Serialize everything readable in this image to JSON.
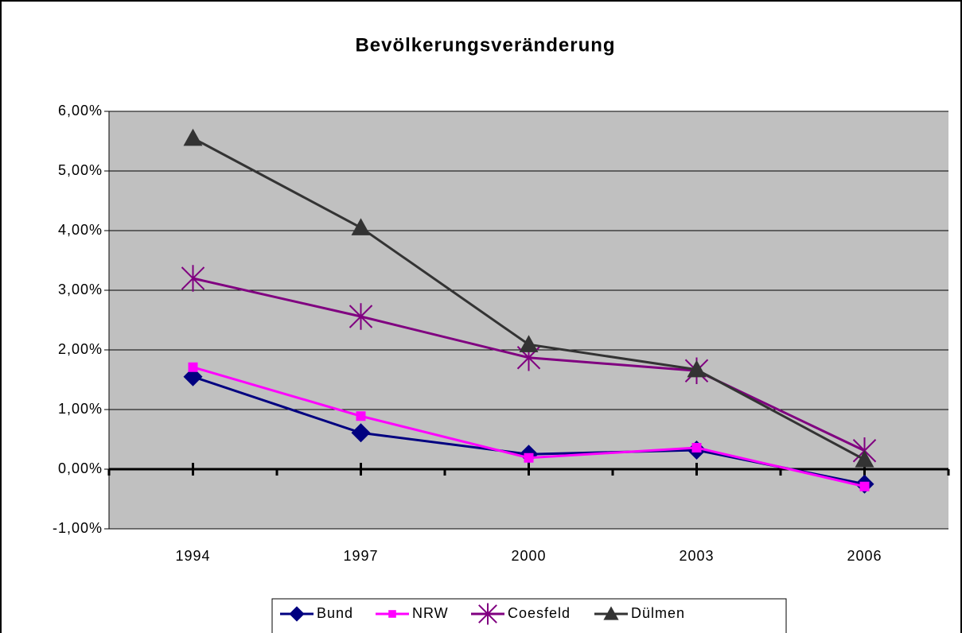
{
  "chart_data": {
    "type": "line",
    "title": "Bevölkerungsveränderung",
    "categories": [
      "1994",
      "1997",
      "2000",
      "2003",
      "2006"
    ],
    "series": [
      {
        "name": "Bund",
        "color": "#000080",
        "marker": "diamond",
        "values": [
          1.55,
          0.61,
          0.25,
          0.32,
          -0.25
        ]
      },
      {
        "name": "NRW",
        "color": "#FF00FF",
        "marker": "square",
        "values": [
          1.71,
          0.89,
          0.19,
          0.36,
          -0.29
        ]
      },
      {
        "name": "Coesfeld",
        "color": "#800080",
        "marker": "star",
        "values": [
          3.2,
          2.56,
          1.87,
          1.65,
          0.31
        ]
      },
      {
        "name": "Dülmen",
        "color": "#333333",
        "marker": "triangle",
        "values": [
          5.55,
          4.05,
          2.09,
          1.67,
          0.16
        ]
      }
    ],
    "ylim": [
      -1,
      6
    ],
    "yticks": [
      {
        "value": -1,
        "label": "-1,00%"
      },
      {
        "value": 0,
        "label": "0,00%"
      },
      {
        "value": 1,
        "label": "1,00%"
      },
      {
        "value": 2,
        "label": "2,00%"
      },
      {
        "value": 3,
        "label": "3,00%"
      },
      {
        "value": 4,
        "label": "4,00%"
      },
      {
        "value": 5,
        "label": "5,00%"
      },
      {
        "value": 6,
        "label": "6,00%"
      }
    ],
    "grid": true,
    "legend": "bottom"
  }
}
